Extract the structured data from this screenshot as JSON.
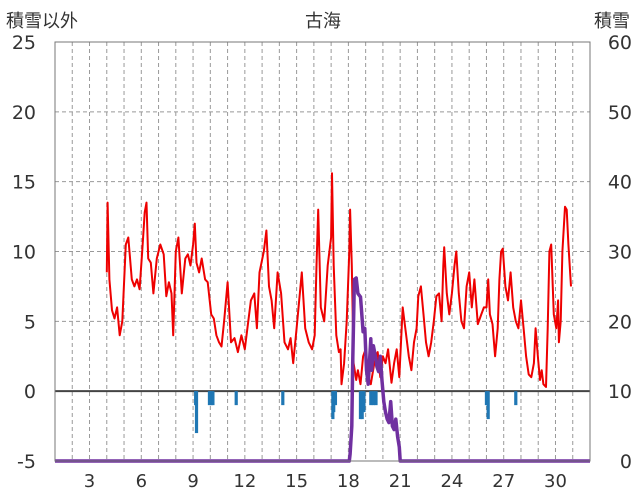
{
  "chart_data": {
    "type": "line",
    "title": "古海",
    "left_axis_label": "積雪以外",
    "right_axis_label": "積雪",
    "y_left": {
      "min": -5,
      "max": 25,
      "ticks": [
        25,
        20,
        15,
        10,
        5,
        0,
        -5
      ]
    },
    "y_right": {
      "min": 0,
      "max": 60,
      "ticks": [
        60,
        50,
        40,
        30,
        20,
        10,
        0
      ]
    },
    "x": {
      "min": 1,
      "max": 32,
      "ticks": [
        3,
        6,
        9,
        12,
        15,
        18,
        21,
        24,
        27,
        30
      ]
    },
    "grid": true,
    "colors": {
      "red": "#ee0000",
      "blue": "#1f77b4",
      "purple": "#7030a0",
      "grid": "#999999",
      "axis": "#444444"
    },
    "series": [
      {
        "color": "red",
        "axis": "left",
        "points": [
          [
            4.0,
            8.5
          ],
          [
            4.05,
            13.5
          ],
          [
            4.15,
            8.0
          ],
          [
            4.3,
            5.8
          ],
          [
            4.45,
            5.2
          ],
          [
            4.6,
            6.0
          ],
          [
            4.75,
            4.0
          ],
          [
            4.9,
            5.0
          ],
          [
            5.1,
            10.5
          ],
          [
            5.25,
            11.0
          ],
          [
            5.45,
            8.0
          ],
          [
            5.6,
            7.5
          ],
          [
            5.75,
            8.0
          ],
          [
            5.9,
            7.3
          ],
          [
            6.05,
            10.0
          ],
          [
            6.2,
            12.8
          ],
          [
            6.3,
            13.5
          ],
          [
            6.4,
            9.5
          ],
          [
            6.55,
            9.2
          ],
          [
            6.7,
            7.0
          ],
          [
            6.9,
            9.5
          ],
          [
            7.1,
            10.5
          ],
          [
            7.3,
            9.8
          ],
          [
            7.45,
            6.8
          ],
          [
            7.6,
            7.8
          ],
          [
            7.75,
            7.0
          ],
          [
            7.85,
            4.0
          ],
          [
            8.0,
            10.0
          ],
          [
            8.15,
            11.0
          ],
          [
            8.35,
            7.0
          ],
          [
            8.55,
            9.5
          ],
          [
            8.7,
            9.8
          ],
          [
            8.85,
            9.0
          ],
          [
            9.0,
            10.5
          ],
          [
            9.1,
            12.0
          ],
          [
            9.2,
            9.2
          ],
          [
            9.35,
            8.5
          ],
          [
            9.5,
            9.5
          ],
          [
            9.7,
            8.0
          ],
          [
            9.85,
            7.8
          ],
          [
            10.05,
            5.5
          ],
          [
            10.2,
            5.2
          ],
          [
            10.35,
            4.0
          ],
          [
            10.5,
            3.5
          ],
          [
            10.65,
            3.2
          ],
          [
            10.8,
            5.0
          ],
          [
            11.0,
            7.8
          ],
          [
            11.2,
            3.5
          ],
          [
            11.4,
            3.8
          ],
          [
            11.6,
            2.8
          ],
          [
            11.8,
            4.0
          ],
          [
            12.0,
            3.0
          ],
          [
            12.15,
            4.5
          ],
          [
            12.35,
            6.5
          ],
          [
            12.55,
            7.0
          ],
          [
            12.7,
            4.5
          ],
          [
            12.85,
            8.5
          ],
          [
            13.1,
            10.0
          ],
          [
            13.25,
            11.5
          ],
          [
            13.4,
            7.5
          ],
          [
            13.55,
            6.5
          ],
          [
            13.7,
            4.5
          ],
          [
            13.9,
            8.5
          ],
          [
            14.1,
            7.0
          ],
          [
            14.3,
            3.5
          ],
          [
            14.5,
            3.0
          ],
          [
            14.65,
            3.8
          ],
          [
            14.8,
            2.0
          ],
          [
            15.0,
            4.5
          ],
          [
            15.15,
            6.5
          ],
          [
            15.3,
            8.5
          ],
          [
            15.5,
            4.5
          ],
          [
            15.7,
            3.5
          ],
          [
            15.9,
            3.0
          ],
          [
            16.05,
            4.0
          ],
          [
            16.15,
            9.0
          ],
          [
            16.25,
            13.0
          ],
          [
            16.4,
            6.0
          ],
          [
            16.6,
            5.0
          ],
          [
            16.8,
            9.0
          ],
          [
            17.0,
            11.0
          ],
          [
            17.05,
            15.6
          ],
          [
            17.15,
            9.0
          ],
          [
            17.3,
            4.0
          ],
          [
            17.45,
            2.8
          ],
          [
            17.55,
            3.0
          ],
          [
            17.6,
            0.5
          ],
          [
            17.75,
            2.0
          ],
          [
            17.9,
            5.0
          ],
          [
            18.05,
            10.0
          ],
          [
            18.1,
            13.0
          ],
          [
            18.2,
            9.0
          ],
          [
            18.3,
            2.0
          ],
          [
            18.45,
            0.8
          ],
          [
            18.55,
            1.5
          ],
          [
            18.7,
            0.5
          ],
          [
            18.85,
            2.5
          ],
          [
            19.0,
            3.0
          ],
          [
            19.15,
            1.0
          ],
          [
            19.3,
            0.5
          ],
          [
            19.5,
            2.0
          ],
          [
            19.7,
            2.8
          ],
          [
            19.85,
            1.0
          ],
          [
            20.0,
            2.5
          ],
          [
            20.15,
            2.0
          ],
          [
            20.3,
            3.0
          ],
          [
            20.5,
            0.6
          ],
          [
            20.65,
            2.0
          ],
          [
            20.8,
            3.0
          ],
          [
            20.95,
            1.0
          ],
          [
            21.05,
            3.5
          ],
          [
            21.15,
            6.0
          ],
          [
            21.3,
            4.5
          ],
          [
            21.5,
            2.5
          ],
          [
            21.65,
            1.5
          ],
          [
            21.8,
            3.5
          ],
          [
            21.95,
            4.5
          ],
          [
            22.05,
            6.8
          ],
          [
            22.2,
            7.5
          ],
          [
            22.35,
            5.5
          ],
          [
            22.5,
            3.5
          ],
          [
            22.65,
            2.5
          ],
          [
            22.8,
            3.5
          ],
          [
            22.95,
            5.0
          ],
          [
            23.1,
            6.8
          ],
          [
            23.25,
            7.0
          ],
          [
            23.4,
            5.0
          ],
          [
            23.5,
            9.0
          ],
          [
            23.55,
            10.3
          ],
          [
            23.7,
            7.0
          ],
          [
            23.85,
            5.5
          ],
          [
            24.0,
            7.0
          ],
          [
            24.15,
            9.0
          ],
          [
            24.25,
            10.0
          ],
          [
            24.4,
            7.0
          ],
          [
            24.55,
            5.0
          ],
          [
            24.7,
            4.5
          ],
          [
            24.85,
            7.5
          ],
          [
            25.0,
            8.5
          ],
          [
            25.15,
            6.0
          ],
          [
            25.3,
            8.0
          ],
          [
            25.5,
            4.8
          ],
          [
            25.7,
            5.5
          ],
          [
            25.85,
            6.0
          ],
          [
            26.0,
            6.0
          ],
          [
            26.1,
            8.0
          ],
          [
            26.2,
            5.5
          ],
          [
            26.35,
            4.8
          ],
          [
            26.5,
            2.5
          ],
          [
            26.65,
            4.5
          ],
          [
            26.75,
            8.0
          ],
          [
            26.85,
            10.0
          ],
          [
            26.95,
            10.2
          ],
          [
            27.1,
            7.5
          ],
          [
            27.25,
            6.5
          ],
          [
            27.4,
            8.5
          ],
          [
            27.55,
            6.0
          ],
          [
            27.7,
            5.0
          ],
          [
            27.85,
            4.5
          ],
          [
            28.0,
            6.5
          ],
          [
            28.15,
            4.5
          ],
          [
            28.3,
            2.5
          ],
          [
            28.45,
            1.2
          ],
          [
            28.6,
            1.0
          ],
          [
            28.75,
            2.0
          ],
          [
            28.85,
            4.5
          ],
          [
            29.0,
            2.2
          ],
          [
            29.1,
            0.8
          ],
          [
            29.2,
            1.5
          ],
          [
            29.3,
            0.5
          ],
          [
            29.45,
            0.3
          ],
          [
            29.55,
            4.5
          ],
          [
            29.65,
            10.0
          ],
          [
            29.75,
            10.5
          ],
          [
            29.9,
            5.5
          ],
          [
            30.05,
            4.5
          ],
          [
            30.15,
            6.5
          ],
          [
            30.2,
            3.5
          ],
          [
            30.3,
            5.0
          ],
          [
            30.4,
            10.0
          ],
          [
            30.55,
            13.2
          ],
          [
            30.65,
            13.0
          ],
          [
            30.75,
            10.5
          ],
          [
            30.9,
            7.5
          ]
        ]
      },
      {
        "color": "purple",
        "axis": "right",
        "points": [
          [
            1.0,
            0
          ],
          [
            17.4,
            0
          ],
          [
            18.05,
            0
          ],
          [
            18.1,
            1.0
          ],
          [
            18.2,
            5.0
          ],
          [
            18.25,
            14.0
          ],
          [
            18.35,
            26.0
          ],
          [
            18.45,
            26.2
          ],
          [
            18.55,
            24.0
          ],
          [
            18.7,
            23.5
          ],
          [
            18.85,
            18.5
          ],
          [
            18.95,
            19.0
          ],
          [
            19.05,
            13.0
          ],
          [
            19.15,
            11.0
          ],
          [
            19.3,
            17.5
          ],
          [
            19.35,
            13.0
          ],
          [
            19.45,
            16.5
          ],
          [
            19.6,
            14.5
          ],
          [
            19.65,
            13.5
          ],
          [
            19.75,
            12.8
          ],
          [
            19.85,
            15.0
          ],
          [
            19.95,
            11.5
          ],
          [
            20.05,
            8.5
          ],
          [
            20.15,
            7.0
          ],
          [
            20.25,
            6.0
          ],
          [
            20.35,
            5.5
          ],
          [
            20.45,
            8.5
          ],
          [
            20.55,
            5.0
          ],
          [
            20.65,
            4.5
          ],
          [
            20.75,
            6.0
          ],
          [
            20.85,
            3.5
          ],
          [
            20.95,
            2.0
          ],
          [
            21.0,
            0
          ],
          [
            32.0,
            0
          ]
        ]
      },
      {
        "color": "blue",
        "axis": "left",
        "style": "bar",
        "points": [
          [
            9.15,
            -1.0
          ],
          [
            9.2,
            -3.0
          ],
          [
            9.95,
            -1.0
          ],
          [
            10.05,
            -1.0
          ],
          [
            10.15,
            -1.0
          ],
          [
            11.5,
            -1.0
          ],
          [
            14.2,
            -1.0
          ],
          [
            17.1,
            -2.0
          ],
          [
            17.15,
            -1.5
          ],
          [
            17.25,
            -1.0
          ],
          [
            18.7,
            -2.0
          ],
          [
            18.8,
            -2.0
          ],
          [
            18.9,
            -1.5
          ],
          [
            19.3,
            -1.0
          ],
          [
            19.45,
            -1.0
          ],
          [
            19.6,
            -1.0
          ],
          [
            26.0,
            -1.0
          ],
          [
            26.1,
            -2.0
          ],
          [
            27.7,
            -1.0
          ]
        ]
      }
    ]
  }
}
